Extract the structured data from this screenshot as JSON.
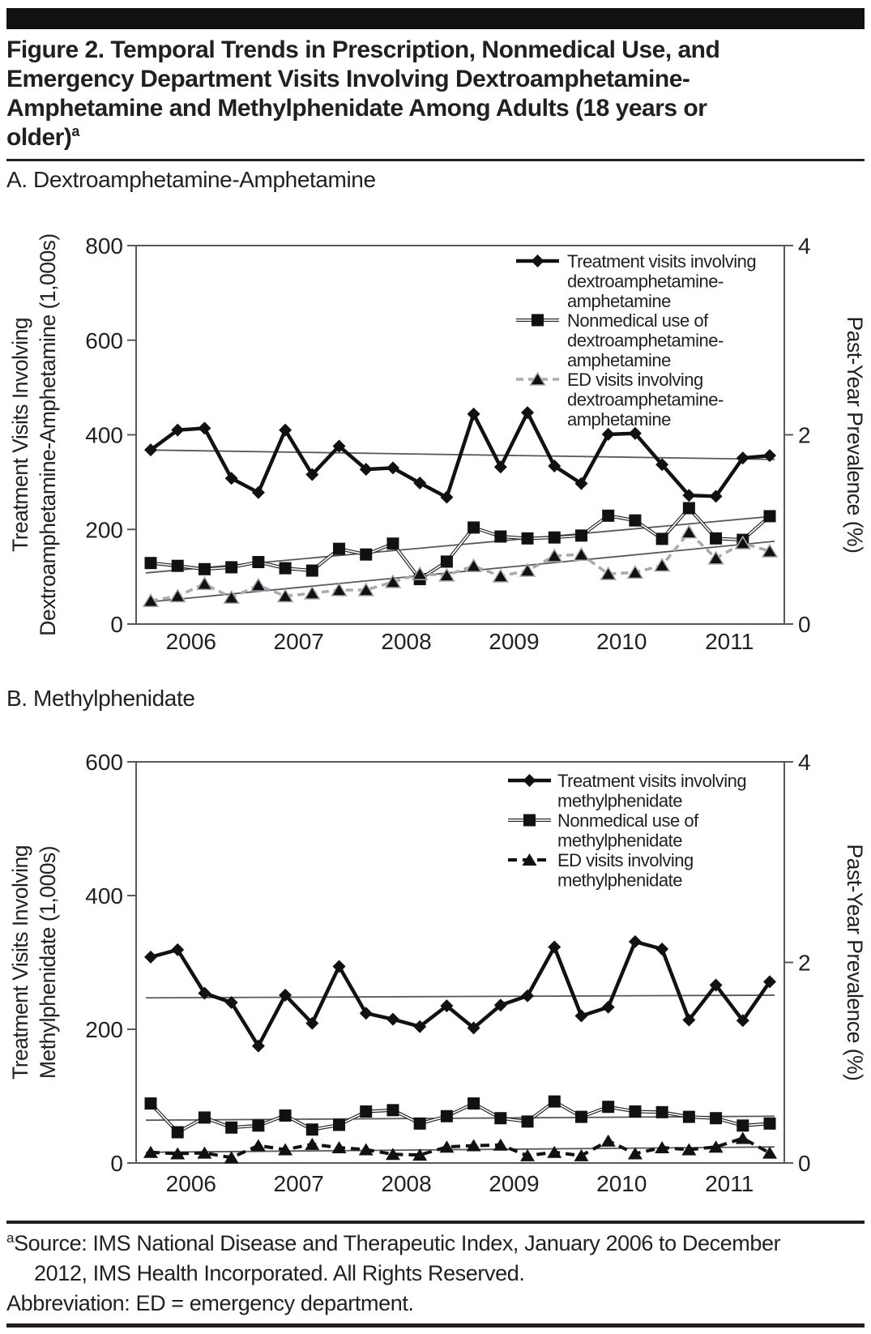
{
  "page": {
    "title": {
      "lines": [
        {
          "text": "Figure 2. Temporal Trends in Prescription, Nonmedical Use, and"
        },
        {
          "text": "Emergency Department Visits Involving Dextroamphetamine-"
        },
        {
          "text": "Amphetamine and Methylphenidate Among Adults (18 years or"
        },
        {
          "text": "older)",
          "sup": "a"
        }
      ]
    },
    "footnote": {
      "lines": [
        {
          "sup": "a",
          "text": "Source: IMS National Disease and Therapeutic Index, January 2006 to December",
          "indent": false
        },
        {
          "text": "2012, IMS Health Incorporated. All Rights Reserved.",
          "indent": true
        },
        {
          "text": "Abbreviation: ED = emergency department.",
          "indent": false
        }
      ]
    },
    "colors": {
      "text": "#231f20",
      "series_black": "#111111",
      "ed_gray_dashed": "#a7a9ac",
      "trend_line": "#58595b",
      "plot_border": "#58595b"
    }
  },
  "chart_data": [
    {
      "type": "line",
      "panel_label": "A. Dextroamphetamine-Amphetamine",
      "x": {
        "tick_labels": [
          "2006",
          "2007",
          "2008",
          "2009",
          "2010",
          "2011"
        ],
        "points": 24,
        "frequency": "quarterly",
        "range": "2006 Q1 - 2011 Q4"
      },
      "left_axis": {
        "title_lines": [
          "Treatment Visits Involving",
          "Dextroamphetamine-Amphetamine (1,000s)"
        ],
        "ticks": [
          0,
          200,
          400,
          600,
          800
        ],
        "max": 800,
        "unit": "thousands"
      },
      "right_axis": {
        "title": "Past-Year Prevalence (%)",
        "ticks": [
          0,
          2,
          4
        ],
        "max": 4,
        "note": "4% aligns with 800 on left axis"
      },
      "legend_position": "top-right-inside",
      "series": [
        {
          "name": "Treatment visits involving dextroamphetamine-amphetamine",
          "legend_lines": [
            "Treatment visits involving",
            "dextroamphetamine-",
            "amphetamine"
          ],
          "marker": "diamond",
          "style": "solid-thick",
          "values": [
            368,
            410,
            414,
            308,
            278,
            410,
            316,
            376,
            327,
            330,
            298,
            268,
            444,
            332,
            447,
            334,
            297,
            401,
            403,
            337,
            272,
            270,
            351,
            356
          ],
          "trend_endpoints": [
            368,
            348
          ]
        },
        {
          "name": "Nonmedical use of dextroamphetamine-amphetamine",
          "legend_lines": [
            "Nonmedical use of",
            "dextroamphetamine-",
            "amphetamine"
          ],
          "marker": "square",
          "style": "thin-double",
          "values": [
            129,
            123,
            116,
            120,
            131,
            118,
            113,
            159,
            147,
            170,
            95,
            132,
            204,
            185,
            181,
            183,
            187,
            229,
            219,
            180,
            245,
            181,
            178,
            228
          ],
          "trend_endpoints": [
            108,
            228
          ]
        },
        {
          "name": "ED visits involving dextroamphetamine-amphetamine",
          "legend_lines": [
            "ED visits involving",
            "dextroamphetamine-",
            "amphetamine"
          ],
          "marker": "triangle",
          "style": "dashed-gray",
          "values": [
            49,
            59,
            85,
            56,
            82,
            59,
            65,
            72,
            72,
            89,
            106,
            103,
            123,
            101,
            113,
            144,
            147,
            106,
            109,
            124,
            194,
            139,
            171,
            154
          ],
          "trend_endpoints": [
            46,
            175
          ]
        }
      ]
    },
    {
      "type": "line",
      "panel_label": "B. Methylphenidate",
      "x": {
        "tick_labels": [
          "2006",
          "2007",
          "2008",
          "2009",
          "2010",
          "2011"
        ],
        "points": 24,
        "frequency": "quarterly",
        "range": "2006 Q1 - 2011 Q4"
      },
      "left_axis": {
        "title_lines": [
          "Treatment Visits Involving",
          "Methylphenidate (1,000s)"
        ],
        "ticks": [
          0,
          200,
          400,
          600
        ],
        "max": 600,
        "unit": "thousands"
      },
      "right_axis": {
        "title": "Past-Year Prevalence (%)",
        "ticks": [
          0,
          2,
          4
        ],
        "max": 4,
        "note": "4% aligns with 600 on left axis"
      },
      "legend_position": "top-right-inside",
      "series": [
        {
          "name": "Treatment visits involving methylphenidate",
          "legend_lines": [
            "Treatment visits involving",
            "methylphenidate"
          ],
          "marker": "diamond",
          "style": "solid-thick",
          "values": [
            308,
            319,
            254,
            240,
            175,
            251,
            209,
            294,
            224,
            215,
            204,
            235,
            202,
            236,
            250,
            323,
            220,
            233,
            331,
            320,
            214,
            266,
            213,
            271
          ],
          "trend_endpoints": [
            247,
            251
          ]
        },
        {
          "name": "Nonmedical use of methylphenidate",
          "legend_lines": [
            "Nonmedical use of",
            "methylphenidate"
          ],
          "marker": "square",
          "style": "thin-double",
          "values": [
            89,
            46,
            68,
            53,
            56,
            71,
            50,
            57,
            77,
            79,
            59,
            70,
            89,
            67,
            62,
            92,
            69,
            84,
            77,
            76,
            69,
            67,
            56,
            59
          ],
          "trend_endpoints": [
            64,
            70
          ]
        },
        {
          "name": "ED visits involving methylphenidate",
          "legend_lines": [
            "ED visits involving",
            "methylphenidate"
          ],
          "marker": "triangle",
          "style": "dashed-black",
          "values": [
            16,
            14,
            15,
            8,
            26,
            20,
            28,
            23,
            20,
            13,
            12,
            24,
            26,
            27,
            11,
            16,
            11,
            33,
            14,
            23,
            20,
            24,
            37,
            15
          ],
          "trend_endpoints": [
            16,
            24
          ]
        }
      ]
    }
  ]
}
